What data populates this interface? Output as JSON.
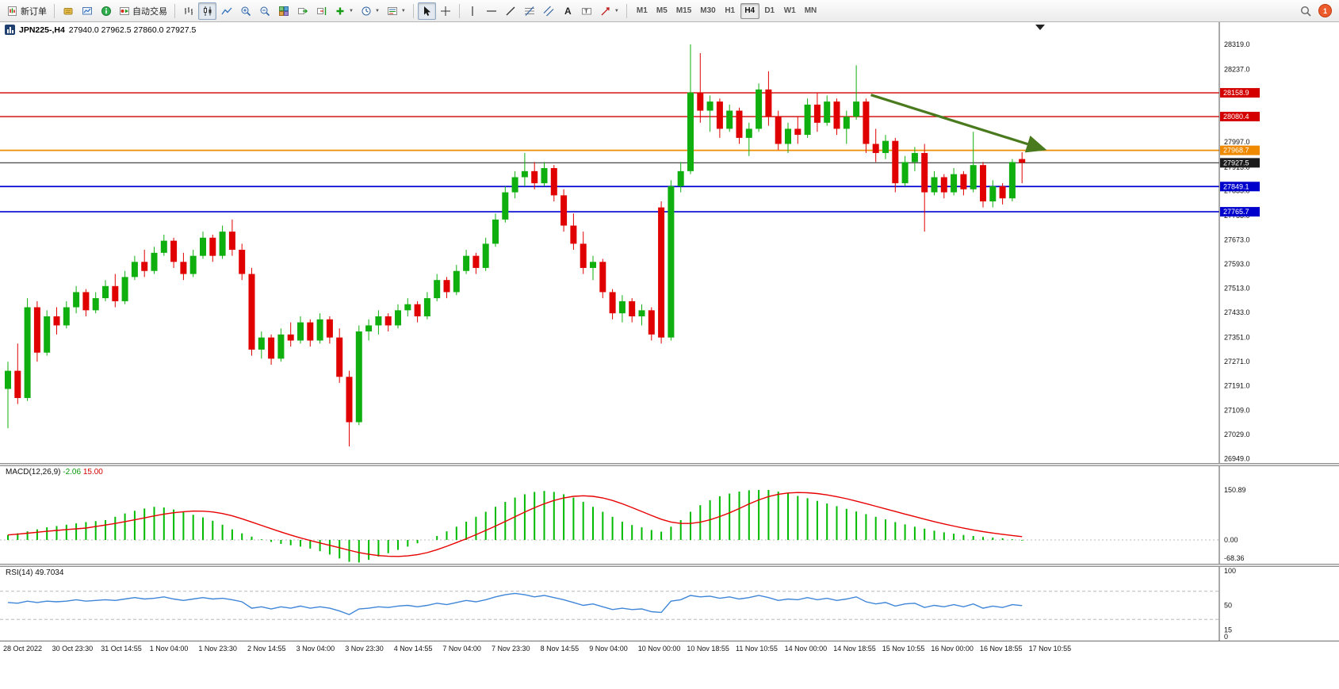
{
  "toolbar": {
    "new_order_label": "新订单",
    "auto_trading_label": "自动交易",
    "timeframes": [
      "M1",
      "M5",
      "M15",
      "M30",
      "H1",
      "H4",
      "D1",
      "W1",
      "MN"
    ],
    "active_timeframe": "H4",
    "notification_badge": "1"
  },
  "chart": {
    "symbol_title": "JPN225-,H4",
    "ohlc_text": "27940.0 27962.5 27860.0 27927.5",
    "macd_title": {
      "name": "MACD(12,26,9)",
      "v1": "-2.06",
      "v2": "15.00"
    },
    "rsi_title": {
      "name": "RSI(14)",
      "v": "49.7034"
    }
  },
  "chart_data": {
    "type": "candlestick",
    "symbol": "JPN225-",
    "timeframe": "H4",
    "current": {
      "open": 27940.0,
      "high": 27962.5,
      "low": 27860.0,
      "close": 27927.5
    },
    "up_color": "#0faf0f",
    "down_color": "#e00000",
    "price_axis": {
      "max": 28319.0,
      "min": 26949.0,
      "labels": [
        "28319.0",
        "28237.0",
        "27997.0",
        "27913.0",
        "27835.0",
        "27753.0",
        "27673.0",
        "27593.0",
        "27513.0",
        "27433.0",
        "27351.0",
        "27271.0",
        "27191.0",
        "27109.0",
        "27029.0",
        "26949.0"
      ]
    },
    "price_badges": [
      {
        "text": "28158.9",
        "value": 28158.9,
        "color": "#d40000"
      },
      {
        "text": "28080.4",
        "value": 28080.4,
        "color": "#d40000"
      },
      {
        "text": "27968.7",
        "value": 27968.7,
        "color": "#ef8a00"
      },
      {
        "text": "27927.5",
        "value": 27927.5,
        "color": "#1c1c1c"
      },
      {
        "text": "27849.1",
        "value": 27849.1,
        "color": "#0000cc"
      },
      {
        "text": "27765.7",
        "value": 27765.7,
        "color": "#0000cc"
      }
    ],
    "hlines": [
      {
        "price": 28158.9,
        "color": "#d40000",
        "width": 1.4
      },
      {
        "price": 28080.4,
        "color": "#d40000",
        "width": 1.4
      },
      {
        "price": 27968.7,
        "color": "#f08c00",
        "width": 1.7
      },
      {
        "price": 27927.5,
        "color": "#333333",
        "width": 1.1
      },
      {
        "price": 27849.1,
        "color": "#0000d0",
        "width": 1.7
      },
      {
        "price": 27765.7,
        "color": "#0000d0",
        "width": 1.7
      }
    ],
    "trend_arrow": {
      "x1_index": 88.5,
      "y1_price": 28152,
      "x2_index": 106.3,
      "y2_price": 27972,
      "color": "#4a7a1e"
    },
    "candles": [
      [
        27180,
        27270,
        27050,
        27240
      ],
      [
        27240,
        27330,
        27130,
        27150
      ],
      [
        27150,
        27480,
        27140,
        27450
      ],
      [
        27450,
        27470,
        27270,
        27300
      ],
      [
        27300,
        27440,
        27290,
        27420
      ],
      [
        27420,
        27450,
        27360,
        27390
      ],
      [
        27390,
        27470,
        27380,
        27450
      ],
      [
        27450,
        27520,
        27430,
        27500
      ],
      [
        27500,
        27510,
        27420,
        27440
      ],
      [
        27440,
        27500,
        27430,
        27480
      ],
      [
        27480,
        27540,
        27470,
        27520
      ],
      [
        27520,
        27560,
        27450,
        27470
      ],
      [
        27470,
        27570,
        27460,
        27550
      ],
      [
        27550,
        27620,
        27540,
        27600
      ],
      [
        27600,
        27640,
        27550,
        27570
      ],
      [
        27570,
        27650,
        27560,
        27630
      ],
      [
        27630,
        27690,
        27620,
        27670
      ],
      [
        27670,
        27680,
        27580,
        27600
      ],
      [
        27600,
        27630,
        27540,
        27560
      ],
      [
        27560,
        27640,
        27550,
        27620
      ],
      [
        27620,
        27700,
        27610,
        27680
      ],
      [
        27680,
        27690,
        27600,
        27620
      ],
      [
        27620,
        27720,
        27610,
        27700
      ],
      [
        27700,
        27740,
        27620,
        27640
      ],
      [
        27640,
        27660,
        27540,
        27560
      ],
      [
        27560,
        27580,
        27290,
        27310
      ],
      [
        27310,
        27370,
        27280,
        27350
      ],
      [
        27350,
        27360,
        27260,
        27280
      ],
      [
        27280,
        27380,
        27270,
        27360
      ],
      [
        27360,
        27400,
        27320,
        27340
      ],
      [
        27340,
        27420,
        27330,
        27400
      ],
      [
        27400,
        27410,
        27320,
        27340
      ],
      [
        27340,
        27430,
        27330,
        27410
      ],
      [
        27410,
        27420,
        27330,
        27350
      ],
      [
        27350,
        27380,
        27200,
        27220
      ],
      [
        27220,
        27240,
        26990,
        27070
      ],
      [
        27070,
        27390,
        27060,
        27370
      ],
      [
        27370,
        27410,
        27340,
        27390
      ],
      [
        27390,
        27440,
        27360,
        27420
      ],
      [
        27420,
        27430,
        27370,
        27390
      ],
      [
        27390,
        27460,
        27380,
        27440
      ],
      [
        27440,
        27480,
        27420,
        27460
      ],
      [
        27460,
        27470,
        27400,
        27420
      ],
      [
        27420,
        27500,
        27410,
        27480
      ],
      [
        27480,
        27560,
        27470,
        27540
      ],
      [
        27540,
        27550,
        27480,
        27500
      ],
      [
        27500,
        27590,
        27490,
        27570
      ],
      [
        27570,
        27640,
        27560,
        27620
      ],
      [
        27620,
        27630,
        27560,
        27580
      ],
      [
        27580,
        27680,
        27570,
        27660
      ],
      [
        27660,
        27760,
        27650,
        27740
      ],
      [
        27740,
        27850,
        27730,
        27830
      ],
      [
        27830,
        27900,
        27810,
        27880
      ],
      [
        27880,
        27960,
        27850,
        27900
      ],
      [
        27900,
        27930,
        27840,
        27860
      ],
      [
        27860,
        27930,
        27850,
        27910
      ],
      [
        27910,
        27920,
        27800,
        27820
      ],
      [
        27820,
        27840,
        27700,
        27720
      ],
      [
        27720,
        27760,
        27640,
        27660
      ],
      [
        27660,
        27700,
        27560,
        27580
      ],
      [
        27580,
        27620,
        27540,
        27600
      ],
      [
        27600,
        27610,
        27480,
        27500
      ],
      [
        27500,
        27510,
        27410,
        27430
      ],
      [
        27430,
        27490,
        27400,
        27470
      ],
      [
        27470,
        27480,
        27400,
        27420
      ],
      [
        27420,
        27460,
        27390,
        27440
      ],
      [
        27440,
        27450,
        27340,
        27360
      ],
      [
        27780,
        27800,
        27330,
        27350
      ],
      [
        27350,
        27870,
        27340,
        27850
      ],
      [
        27850,
        27930,
        27830,
        27900
      ],
      [
        27900,
        28319,
        27890,
        28160
      ],
      [
        28160,
        28290,
        28060,
        28100
      ],
      [
        28100,
        28150,
        28030,
        28130
      ],
      [
        28130,
        28140,
        28010,
        28040
      ],
      [
        28040,
        28120,
        28030,
        28100
      ],
      [
        28100,
        28110,
        27990,
        28010
      ],
      [
        28010,
        28060,
        27950,
        28040
      ],
      [
        28040,
        28190,
        28030,
        28170
      ],
      [
        28170,
        28230,
        28050,
        28080
      ],
      [
        28080,
        28100,
        27970,
        27990
      ],
      [
        27990,
        28060,
        27960,
        28040
      ],
      [
        28040,
        28080,
        27990,
        28020
      ],
      [
        28020,
        28140,
        28010,
        28120
      ],
      [
        28120,
        28160,
        28030,
        28060
      ],
      [
        28060,
        28150,
        28050,
        28130
      ],
      [
        28130,
        28140,
        28020,
        28040
      ],
      [
        28040,
        28100,
        27990,
        28080
      ],
      [
        28080,
        28250,
        28070,
        28130
      ],
      [
        28130,
        28140,
        27960,
        27990
      ],
      [
        27990,
        28040,
        27930,
        27960
      ],
      [
        27960,
        28020,
        27940,
        28000
      ],
      [
        28000,
        28010,
        27830,
        27860
      ],
      [
        27860,
        27950,
        27850,
        27930
      ],
      [
        27930,
        27980,
        27900,
        27960
      ],
      [
        27960,
        27990,
        27700,
        27830
      ],
      [
        27830,
        27900,
        27820,
        27880
      ],
      [
        27880,
        27890,
        27810,
        27830
      ],
      [
        27830,
        27910,
        27820,
        27890
      ],
      [
        27890,
        27900,
        27820,
        27840
      ],
      [
        27840,
        28030,
        27830,
        27920
      ],
      [
        27920,
        27930,
        27780,
        27800
      ],
      [
        27800,
        27870,
        27780,
        27850
      ],
      [
        27850,
        27860,
        27790,
        27810
      ],
      [
        27810,
        27940,
        27800,
        27930
      ],
      [
        27940,
        27962.5,
        27860,
        27927.5
      ]
    ],
    "time_labels": [
      "28 Oct 2022",
      "30 Oct 23:30",
      "31 Oct 14:55",
      "1 Nov 04:00",
      "1 Nov 23:30",
      "2 Nov 14:55",
      "3 Nov 04:00",
      "3 Nov 23:30",
      "4 Nov 14:55",
      "7 Nov 04:00",
      "7 Nov 23:30",
      "8 Nov 14:55",
      "9 Nov 04:00",
      "10 Nov 00:00",
      "10 Nov 18:55",
      "11 Nov 10:55",
      "14 Nov 00:00",
      "14 Nov 18:55",
      "15 Nov 10:55",
      "16 Nov 00:00",
      "16 Nov 18:55",
      "17 Nov 10:55"
    ],
    "macd": {
      "label": "MACD(12,26,9)",
      "value_main": -2.06,
      "value_signal": 15.0,
      "bar_color": "#00bb00",
      "signal_color": "#e80000",
      "axis": [
        {
          "v": 150.89,
          "t": "150.89"
        },
        {
          "v": 0,
          "t": "0.00"
        },
        {
          "v": -68.36,
          "t": "-68.36"
        }
      ],
      "values": [
        15,
        20,
        26,
        32,
        38,
        42,
        46,
        50,
        54,
        57,
        60,
        70,
        80,
        88,
        95,
        100,
        98,
        92,
        85,
        76,
        68,
        58,
        46,
        32,
        20,
        10,
        2,
        -6,
        -12,
        -16,
        -20,
        -26,
        -34,
        -44,
        -56,
        -66,
        -68,
        -60,
        -50,
        -40,
        -30,
        -20,
        -10,
        0,
        12,
        26,
        40,
        55,
        70,
        85,
        100,
        115,
        128,
        138,
        145,
        148,
        145,
        138,
        128,
        115,
        100,
        85,
        70,
        55,
        45,
        38,
        30,
        25,
        40,
        60,
        85,
        105,
        120,
        132,
        140,
        146,
        150,
        151,
        151,
        146,
        140,
        133,
        126,
        118,
        110,
        102,
        94,
        86,
        78,
        70,
        62,
        54,
        47,
        40,
        34,
        28,
        23,
        19,
        15,
        12,
        9,
        7,
        5,
        2,
        -2
      ]
    },
    "rsi": {
      "label": "RSI(14)",
      "value": 49.7034,
      "line_color": "#3f86d8",
      "levels": [
        70,
        30
      ],
      "axis": [
        {
          "v": 100,
          "t": "100"
        },
        {
          "v": 50,
          "t": "50"
        },
        {
          "v": 15,
          "t": "15"
        },
        {
          "v": 0,
          "t": "0"
        }
      ],
      "values": [
        54,
        53,
        56,
        54,
        56,
        55,
        56,
        58,
        56,
        57,
        58,
        57,
        59,
        61,
        59,
        60,
        62,
        59,
        57,
        59,
        61,
        59,
        60,
        58,
        55,
        46,
        48,
        45,
        48,
        46,
        49,
        46,
        48,
        46,
        42,
        37,
        45,
        46,
        48,
        47,
        49,
        50,
        48,
        50,
        53,
        51,
        54,
        57,
        55,
        58,
        62,
        65,
        67,
        65,
        62,
        64,
        61,
        58,
        54,
        50,
        52,
        48,
        44,
        46,
        44,
        45,
        41,
        40,
        56,
        58,
        64,
        62,
        63,
        60,
        62,
        59,
        61,
        64,
        61,
        57,
        59,
        58,
        61,
        58,
        60,
        57,
        59,
        62,
        55,
        52,
        54,
        49,
        52,
        53,
        47,
        50,
        48,
        51,
        48,
        52,
        46,
        49,
        47,
        51,
        49.7
      ]
    }
  }
}
